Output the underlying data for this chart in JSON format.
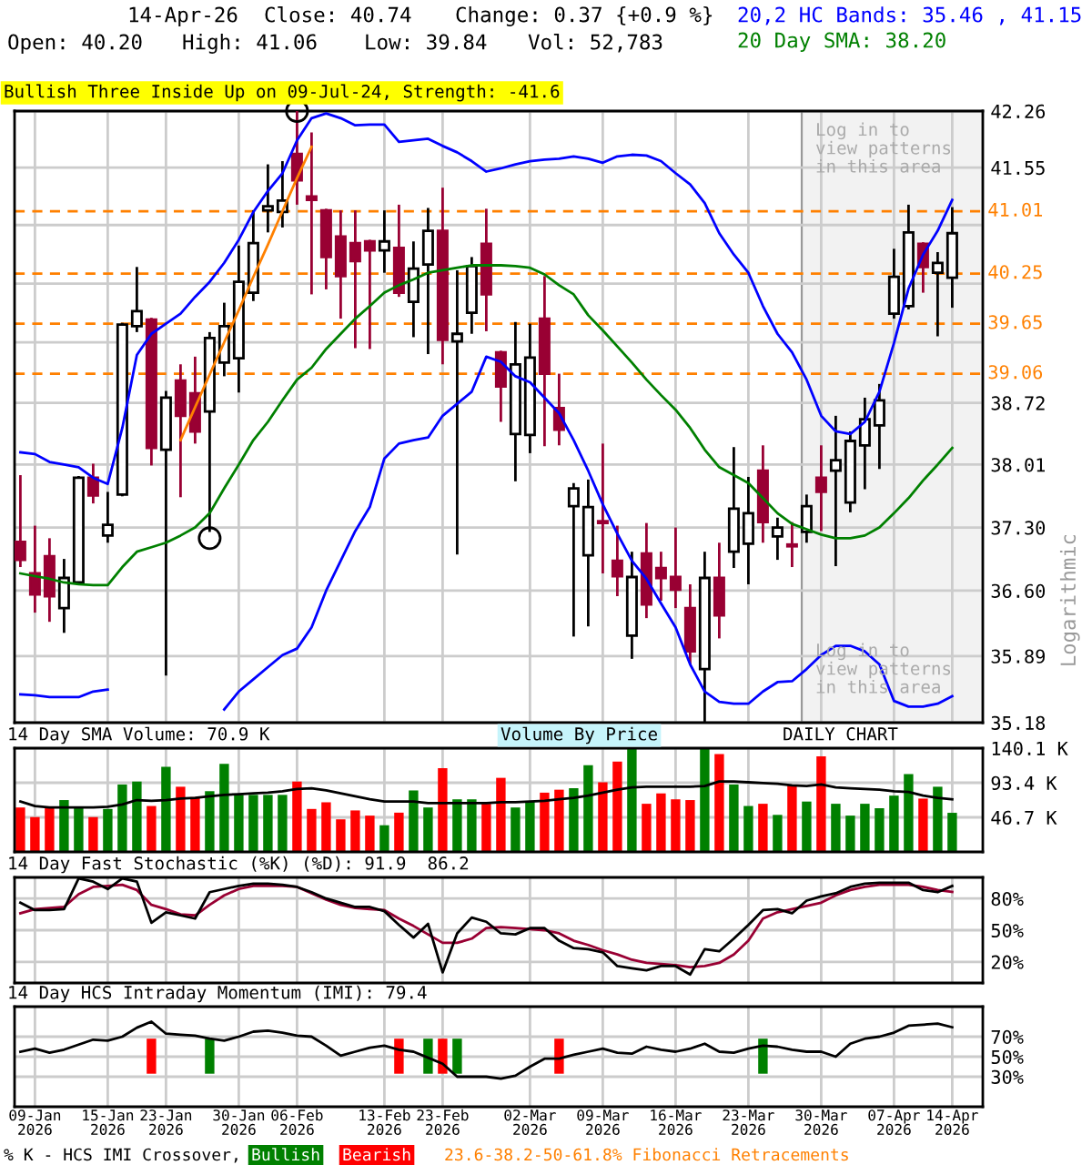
{
  "chart_data": [
    {
      "type": "candlestick",
      "categories": [
        null,
        null,
        null,
        null,
        null,
        null,
        null,
        null,
        null,
        null,
        null,
        null,
        null,
        null,
        null,
        null,
        null,
        null,
        null,
        null,
        null,
        null,
        null,
        null,
        null,
        null,
        null,
        null,
        null,
        null,
        null,
        null,
        null,
        null,
        null,
        null,
        null,
        null,
        null,
        null,
        null,
        null,
        null,
        null,
        null,
        null,
        null,
        null,
        null,
        null,
        null,
        null,
        null,
        null,
        null,
        null,
        null,
        null,
        null,
        null,
        null,
        null,
        null,
        null,
        null
      ],
      "ohlc": [
        [
          37.14,
          37.89,
          36.86,
          36.94
        ],
        [
          36.79,
          37.32,
          36.36,
          36.56
        ],
        [
          36.98,
          37.18,
          36.26,
          36.54
        ],
        [
          36.41,
          36.95,
          36.14,
          36.74
        ],
        [
          36.69,
          37.88,
          36.69,
          37.86
        ],
        [
          37.86,
          38.02,
          37.57,
          37.66
        ],
        [
          37.21,
          37.7,
          37.13,
          37.33
        ],
        [
          37.67,
          39.66,
          37.65,
          39.64
        ],
        [
          39.62,
          40.33,
          39.55,
          39.8
        ],
        [
          39.7,
          39.72,
          38.0,
          38.2
        ],
        [
          38.18,
          38.86,
          35.68,
          38.78
        ],
        [
          38.98,
          39.17,
          37.64,
          38.57
        ],
        [
          38.83,
          39.26,
          38.25,
          38.39
        ],
        [
          38.62,
          39.55,
          37.25,
          39.48
        ],
        [
          39.19,
          39.9,
          39.03,
          39.62
        ],
        [
          39.24,
          40.59,
          38.84,
          40.15
        ],
        [
          40.02,
          41.02,
          39.92,
          40.62
        ],
        [
          41.02,
          41.59,
          40.75,
          41.07
        ],
        [
          41.0,
          41.63,
          40.81,
          41.14
        ],
        [
          41.72,
          42.26,
          41.09,
          41.39
        ],
        [
          41.19,
          41.99,
          40.0,
          41.15
        ],
        [
          41.02,
          41.04,
          40.06,
          40.45
        ],
        [
          40.7,
          41.02,
          39.71,
          40.22
        ],
        [
          40.62,
          41.02,
          39.36,
          40.4
        ],
        [
          40.64,
          40.66,
          39.35,
          40.53
        ],
        [
          40.53,
          41.02,
          40.26,
          40.64
        ],
        [
          40.56,
          41.09,
          39.97,
          40.02
        ],
        [
          39.91,
          40.64,
          39.49,
          40.31
        ],
        [
          40.36,
          41.05,
          39.29,
          40.77
        ],
        [
          40.77,
          41.3,
          39.17,
          39.46
        ],
        [
          39.44,
          40.29,
          37.0,
          39.53
        ],
        [
          39.78,
          40.45,
          39.53,
          40.34
        ],
        [
          40.61,
          41.04,
          39.56,
          40.0
        ],
        [
          39.31,
          39.33,
          38.5,
          38.91
        ],
        [
          38.36,
          39.67,
          37.82,
          39.17
        ],
        [
          38.35,
          39.65,
          38.14,
          39.25
        ],
        [
          39.71,
          40.22,
          38.22,
          39.06
        ],
        [
          38.66,
          39.06,
          38.23,
          38.41
        ],
        [
          37.54,
          37.8,
          36.1,
          37.74
        ],
        [
          36.99,
          37.84,
          36.21,
          37.53
        ],
        [
          37.37,
          38.25,
          36.79,
          37.35
        ],
        [
          36.93,
          37.32,
          36.54,
          36.76
        ],
        [
          36.11,
          37.03,
          35.86,
          36.75
        ],
        [
          37.01,
          37.35,
          36.3,
          36.45
        ],
        [
          36.85,
          37.03,
          36.49,
          36.74
        ],
        [
          36.75,
          37.3,
          36.41,
          36.61
        ],
        [
          36.41,
          36.67,
          35.8,
          35.94
        ],
        [
          35.75,
          37.03,
          35.19,
          36.74
        ],
        [
          36.74,
          37.13,
          36.08,
          36.33
        ],
        [
          37.03,
          38.21,
          36.85,
          37.51
        ],
        [
          37.12,
          37.87,
          36.67,
          37.46
        ],
        [
          37.94,
          38.23,
          37.13,
          37.36
        ],
        [
          37.2,
          37.41,
          36.94,
          37.3
        ],
        [
          37.11,
          37.36,
          36.86,
          37.09
        ],
        [
          37.25,
          37.67,
          37.13,
          37.54
        ],
        [
          37.86,
          38.23,
          37.26,
          37.7
        ],
        [
          37.94,
          38.57,
          36.87,
          38.06
        ],
        [
          37.58,
          38.39,
          37.47,
          38.28
        ],
        [
          38.23,
          38.78,
          37.73,
          38.53
        ],
        [
          38.46,
          38.94,
          37.96,
          38.75
        ],
        [
          39.77,
          40.55,
          39.71,
          40.21
        ],
        [
          39.86,
          41.09,
          39.82,
          40.75
        ],
        [
          40.61,
          40.63,
          40.02,
          40.33
        ],
        [
          40.26,
          40.51,
          39.5,
          40.38
        ],
        [
          40.2,
          41.06,
          39.84,
          40.74
        ]
      ],
      "colors": [
        "#990033",
        "#990033",
        "#990033",
        "#ffffff",
        "#ffffff",
        "#990033",
        "#ffffff",
        "#ffffff",
        "#ffffff",
        "#990033",
        "#ffffff",
        "#990033",
        "#990033",
        "#ffffff",
        "#ffffff",
        "#ffffff",
        "#ffffff",
        "#ffffff",
        "#ffffff",
        "#990033",
        "#990033",
        "#990033",
        "#990033",
        "#990033",
        "#990033",
        "#ffffff",
        "#990033",
        "#ffffff",
        "#ffffff",
        "#990033",
        "#ffffff",
        "#ffffff",
        "#990033",
        "#990033",
        "#ffffff",
        "#ffffff",
        "#990033",
        "#990033",
        "#ffffff",
        "#ffffff",
        "#990033",
        "#990033",
        "#ffffff",
        "#990033",
        "#990033",
        "#990033",
        "#990033",
        "#ffffff",
        "#990033",
        "#ffffff",
        "#ffffff",
        "#990033",
        "#ffffff",
        "#990033",
        "#ffffff",
        "#990033",
        "#ffffff",
        "#ffffff",
        "#ffffff",
        "#ffffff",
        "#ffffff",
        "#ffffff",
        "#990033",
        "#ffffff",
        "#ffffff"
      ],
      "log": true,
      "ylim": [
        35.18,
        42.26
      ],
      "yticks": [
        35.18,
        35.89,
        {
          "value": 36.6,
          "label": "36.60"
        },
        {
          "value": 37.3,
          "label": "37.30"
        },
        38.01,
        38.72,
        {
          "value": 39.43,
          "label": null
        },
        {
          "value": 40.13,
          "label": null
        },
        {
          "value": 40.84,
          "label": null
        },
        41.55,
        42.26
      ],
      "ylabel": "Logarithmic",
      "tick_labels": "y",
      "grid": true,
      "ref_lines": [
        {
          "axis": "y",
          "value": 41.01,
          "label": "41.01",
          "color": "#ff8000",
          "line_style": "dashed"
        },
        {
          "axis": "y",
          "value": 40.25,
          "label": "40.25",
          "color": "#ff8000",
          "line_style": "dashed"
        },
        {
          "axis": "y",
          "value": 39.65,
          "label": "39.65",
          "color": "#ff8000",
          "line_style": "dashed"
        },
        {
          "axis": "y",
          "value": 39.06,
          "label": "39.06",
          "color": "#ff8000",
          "line_style": "dashed"
        }
      ],
      "annotations": [
        "14-Apr-26",
        "Close: 40.74",
        "Change: 0.37 {+0.9 %}",
        "Open: 40.20",
        "High: 41.06",
        "Low: 39.84",
        "Vol: 52,783",
        "20,2 HC Bands: 35.46 , 41.15",
        "20 Day SMA: 38.20",
        "Bullish Three Inside Up on 09-Jul-24, Strength: -41.6",
        "Log in to\nview patterns\nin this area",
        "Log in to\nview patterns\nin this area"
      ],
      "series": [
        {
          "type": "line",
          "color": "#0000ff",
          "values": [
            38.15,
            38.13,
            38.04,
            38.01,
            37.98,
            37.86,
            37.79,
            38.43,
            39.28,
            39.53,
            39.65,
            39.77,
            39.97,
            40.15,
            40.38,
            40.66,
            41.0,
            41.26,
            41.48,
            41.89,
            42.17,
            42.23,
            42.17,
            42.08,
            42.09,
            42.09,
            41.87,
            41.89,
            41.91,
            41.82,
            41.74,
            41.63,
            41.5,
            41.54,
            41.59,
            41.63,
            41.65,
            41.66,
            41.69,
            41.66,
            41.61,
            41.69,
            41.71,
            41.7,
            41.63,
            41.48,
            41.34,
            41.11,
            40.74,
            40.48,
            40.26,
            39.86,
            39.53,
            39.31,
            38.99,
            38.57,
            38.39,
            38.36,
            38.5,
            38.85,
            39.42,
            40.07,
            40.48,
            40.77,
            41.15
          ]
        },
        {
          "type": "line",
          "color": "#0000ff",
          "values": [
            35.48,
            35.47,
            35.45,
            35.45,
            35.45,
            35.51,
            35.53,
            null,
            null,
            null,
            null,
            null,
            null,
            null,
            35.32,
            35.51,
            35.64,
            35.77,
            35.9,
            35.97,
            36.2,
            36.6,
            36.93,
            37.26,
            37.53,
            38.08,
            38.25,
            38.29,
            38.32,
            38.57,
            38.71,
            38.85,
            39.26,
            39.2,
            39.03,
            38.96,
            38.78,
            38.6,
            38.29,
            37.94,
            37.56,
            37.23,
            36.93,
            36.73,
            36.46,
            36.2,
            35.8,
            35.51,
            35.4,
            35.38,
            35.38,
            35.51,
            35.61,
            35.62,
            35.75,
            35.9,
            36.0,
            36.0,
            35.94,
            35.8,
            35.41,
            35.35,
            35.35,
            35.38,
            35.46
          ]
        },
        {
          "type": "line",
          "color": "#008000",
          "values": [
            36.79,
            36.76,
            36.73,
            36.69,
            36.67,
            36.66,
            36.66,
            36.86,
            37.03,
            37.08,
            37.13,
            37.21,
            37.3,
            37.46,
            37.74,
            38.01,
            38.29,
            38.5,
            38.75,
            38.99,
            39.13,
            39.35,
            39.53,
            39.71,
            39.86,
            40.02,
            40.11,
            40.18,
            40.26,
            40.29,
            40.32,
            40.35,
            40.35,
            40.35,
            40.34,
            40.32,
            40.24,
            40.11,
            40.0,
            39.75,
            39.57,
            39.38,
            39.19,
            38.99,
            38.81,
            38.64,
            38.43,
            38.18,
            37.98,
            37.89,
            37.8,
            37.63,
            37.46,
            37.34,
            37.28,
            37.22,
            37.18,
            37.18,
            37.21,
            37.3,
            37.46,
            37.63,
            37.83,
            38.01,
            38.2
          ]
        },
        {
          "type": "line",
          "color": "#ff8000",
          "values": [
            null,
            null,
            null,
            null,
            null,
            null,
            null,
            null,
            null,
            null,
            null,
            38.29,
            38.67,
            39.05,
            39.43,
            39.81,
            40.21,
            40.6,
            41.01,
            41.42,
            41.81,
            null,
            null,
            null,
            null,
            null,
            null,
            null,
            null,
            null,
            null,
            null,
            null,
            null,
            null,
            null,
            null,
            null,
            null,
            null,
            null,
            null,
            null,
            null,
            null,
            null,
            null,
            null,
            null,
            null,
            null,
            null,
            null,
            null,
            null,
            null,
            null,
            null,
            null,
            null,
            null,
            null,
            null,
            null,
            null
          ]
        },
        {
          "type": "scatter",
          "marker": "circle",
          "color": "#000000",
          "values": [
            null,
            null,
            null,
            null,
            null,
            null,
            null,
            null,
            null,
            null,
            null,
            null,
            null,
            37.18,
            null,
            null,
            null,
            null,
            null,
            42.26,
            null,
            null,
            null,
            null,
            null,
            null,
            null,
            null,
            null,
            null,
            null,
            null,
            null,
            null,
            null,
            null,
            null,
            null,
            null,
            null,
            null,
            null,
            null,
            null,
            null,
            null,
            null,
            null,
            null,
            null,
            null,
            null,
            null,
            null,
            null,
            null,
            null,
            null,
            null,
            null,
            null,
            null,
            null,
            null,
            null
          ]
        }
      ]
    },
    {
      "type": "bar",
      "title": "14 Day SMA Volume: 70.9 K",
      "categories": [
        null,
        null,
        null,
        null,
        null,
        null,
        null,
        null,
        null,
        null,
        null,
        null,
        null,
        null,
        null,
        null,
        null,
        null,
        null,
        null,
        null,
        null,
        null,
        null,
        null,
        null,
        null,
        null,
        null,
        null,
        null,
        null,
        null,
        null,
        null,
        null,
        null,
        null,
        null,
        null,
        null,
        null,
        null,
        null,
        null,
        null,
        null,
        null,
        null,
        null,
        null,
        null,
        null,
        null,
        null,
        null,
        null,
        null,
        null,
        null,
        null,
        null,
        null,
        null,
        null
      ],
      "ylim": [
        0,
        140.1
      ],
      "yticks": [
        {
          "value": 46.7,
          "label": "46.7 K"
        },
        {
          "value": 93.4,
          "label": "93.4 K"
        },
        {
          "value": 140.1,
          "label": "140.1 K"
        }
      ],
      "tick_labels": "y",
      "grid": true,
      "annotations": [
        "Volume By Price",
        "DAILY CHART"
      ],
      "series": [
        {
          "type": "bar",
          "colors": [
            "#ff0000",
            "#ff0000",
            "#ff0000",
            "#008000",
            "#008000",
            "#ff0000",
            "#008000",
            "#008000",
            "#008000",
            "#ff0000",
            "#008000",
            "#ff0000",
            "#ff0000",
            "#008000",
            "#008000",
            "#008000",
            "#008000",
            "#008000",
            "#008000",
            "#ff0000",
            "#ff0000",
            "#ff0000",
            "#ff0000",
            "#ff0000",
            "#ff0000",
            "#008000",
            "#ff0000",
            "#008000",
            "#008000",
            "#ff0000",
            "#008000",
            "#008000",
            "#ff0000",
            "#ff0000",
            "#008000",
            "#008000",
            "#ff0000",
            "#ff0000",
            "#008000",
            "#008000",
            "#ff0000",
            "#ff0000",
            "#008000",
            "#ff0000",
            "#ff0000",
            "#ff0000",
            "#ff0000",
            "#008000",
            "#ff0000",
            "#008000",
            "#008000",
            "#ff0000",
            "#008000",
            "#ff0000",
            "#008000",
            "#ff0000",
            "#008000",
            "#008000",
            "#008000",
            "#008000",
            "#008000",
            "#008000",
            "#ff0000",
            "#008000",
            "#008000"
          ],
          "values": [
            60,
            47,
            59,
            70,
            60,
            47,
            58,
            91,
            95,
            62,
            115,
            88,
            74,
            82,
            119,
            77,
            77,
            77,
            77,
            95,
            58,
            67,
            44,
            56,
            49,
            36,
            53,
            83,
            60,
            113,
            71,
            71,
            65,
            100,
            60,
            68,
            80,
            84,
            86,
            117,
            94,
            122,
            140,
            65,
            79,
            71,
            70,
            140,
            132,
            91,
            62,
            65,
            50,
            90,
            68,
            129,
            65,
            49,
            65,
            59,
            76,
            105,
            72,
            88,
            52.8
          ]
        },
        {
          "type": "line",
          "color": "#000000",
          "values": [
            68,
            62,
            60,
            60,
            60,
            60,
            61,
            64,
            70,
            69,
            70,
            72,
            73,
            75,
            77,
            78,
            79,
            80,
            82,
            85,
            86,
            83,
            79,
            75,
            71,
            68,
            68,
            68,
            66,
            66,
            66,
            66,
            66,
            67,
            67,
            68,
            69,
            71,
            73,
            76,
            80,
            84,
            87,
            88,
            88,
            88,
            88,
            89,
            95,
            95,
            94,
            93,
            92,
            90,
            89,
            91,
            87,
            86,
            85,
            84,
            82,
            81,
            76,
            73,
            70.9
          ]
        }
      ]
    },
    {
      "type": "line",
      "title": "14 Day Fast Stochastic (%K) (%D): 91.9  86.2",
      "categories": [
        null,
        null,
        null,
        null,
        null,
        null,
        null,
        null,
        null,
        null,
        null,
        null,
        null,
        null,
        null,
        null,
        null,
        null,
        null,
        null,
        null,
        null,
        null,
        null,
        null,
        null,
        null,
        null,
        null,
        null,
        null,
        null,
        null,
        null,
        null,
        null,
        null,
        null,
        null,
        null,
        null,
        null,
        null,
        null,
        null,
        null,
        null,
        null,
        null,
        null,
        null,
        null,
        null,
        null,
        null,
        null,
        null,
        null,
        null,
        null,
        null,
        null,
        null,
        null,
        null
      ],
      "ylim": [
        0,
        100
      ],
      "yticks": [
        {
          "value": 20,
          "label": "20%"
        },
        {
          "value": 50,
          "label": "50%"
        },
        {
          "value": 80,
          "label": "80%"
        }
      ],
      "tick_labels": "y",
      "grid": true,
      "series": [
        {
          "color": "#990033",
          "values": [
            66,
            70,
            71,
            72,
            84,
            91,
            92,
            93,
            88,
            74,
            70,
            65,
            64,
            74,
            83,
            89,
            92,
            92,
            92,
            91,
            85,
            79,
            74,
            71,
            70,
            69,
            61,
            54,
            46,
            38,
            38,
            42,
            52,
            53,
            52,
            51,
            50,
            47,
            40,
            36,
            31,
            27,
            22,
            19,
            18,
            17,
            15,
            16,
            19,
            27,
            40,
            61,
            67,
            70,
            73,
            76,
            83,
            88,
            91,
            93,
            93,
            93,
            91,
            88,
            86.2
          ]
        },
        {
          "color": "#000000",
          "values": [
            76,
            69,
            69,
            70,
            99,
            96,
            89,
            99,
            96,
            57,
            67,
            64,
            61,
            86,
            89,
            92,
            94,
            94,
            93,
            91,
            86,
            80,
            76,
            72,
            72,
            68,
            55,
            43,
            56,
            10,
            47,
            62,
            58,
            47,
            46,
            52,
            52,
            40,
            33,
            32,
            29,
            16,
            14,
            12,
            16,
            16,
            8,
            32,
            30,
            42,
            55,
            69,
            70,
            66,
            78,
            82,
            85,
            91,
            94,
            95,
            95,
            95,
            88,
            86,
            91.9
          ]
        }
      ]
    },
    {
      "type": "line",
      "title": "14 Day HCS Intraday Momentum (IMI): 79.4",
      "categories": [
        null,
        "09-Jan\n2026",
        null,
        null,
        null,
        null,
        "15-Jan\n2026",
        null,
        null,
        null,
        "23-Jan\n2026",
        null,
        null,
        null,
        null,
        "30-Jan\n2026",
        null,
        null,
        null,
        "06-Feb\n2026",
        null,
        null,
        null,
        null,
        null,
        "13-Feb\n2026",
        null,
        null,
        null,
        "23-Feb\n2026",
        null,
        null,
        null,
        null,
        null,
        "02-Mar\n2026",
        null,
        null,
        null,
        null,
        "09-Mar\n2026",
        null,
        null,
        null,
        null,
        "16-Mar\n2026",
        null,
        null,
        null,
        null,
        "23-Mar\n2026",
        null,
        null,
        null,
        null,
        "30-Mar\n2026",
        null,
        null,
        null,
        null,
        "07-Apr\n2026",
        null,
        null,
        null,
        "14-Apr\n2026"
      ],
      "ylim": [
        0,
        100
      ],
      "yticks": [
        {
          "value": 30,
          "label": "30%"
        },
        {
          "value": 50,
          "label": "50%"
        },
        {
          "value": 70,
          "label": "70%"
        }
      ],
      "grid": true,
      "annotations": [
        "% K - HCS IMI Crossover,",
        "Bullish",
        "Bearish",
        "23.6-38.2-50-61.8% Fibonacci Retracements"
      ],
      "series": [
        {
          "type": "bar",
          "colors": [
            null,
            null,
            null,
            null,
            null,
            null,
            null,
            null,
            null,
            "#ff0000",
            null,
            null,
            null,
            "#008000",
            null,
            null,
            null,
            null,
            null,
            null,
            null,
            null,
            null,
            null,
            null,
            null,
            "#ff0000",
            null,
            "#008000",
            "#ff0000",
            "#008000",
            null,
            null,
            null,
            null,
            null,
            null,
            "#ff0000",
            null,
            null,
            null,
            null,
            null,
            null,
            null,
            null,
            null,
            null,
            null,
            null,
            null,
            "#008000",
            null,
            null,
            null,
            null,
            null,
            null,
            null,
            null,
            null,
            null,
            null,
            null,
            null
          ],
          "base": [
            null,
            null,
            null,
            null,
            null,
            null,
            null,
            null,
            null,
            33,
            null,
            null,
            null,
            33,
            null,
            null,
            null,
            null,
            null,
            null,
            null,
            null,
            null,
            null,
            null,
            null,
            33,
            null,
            33,
            33,
            33,
            null,
            null,
            null,
            null,
            null,
            null,
            33,
            null,
            null,
            null,
            null,
            null,
            null,
            null,
            null,
            null,
            null,
            null,
            null,
            null,
            33,
            null,
            null,
            null,
            null,
            null,
            null,
            null,
            null,
            null,
            null,
            null,
            null,
            null
          ],
          "values": [
            null,
            null,
            null,
            null,
            null,
            null,
            null,
            null,
            null,
            35,
            null,
            null,
            null,
            35,
            null,
            null,
            null,
            null,
            null,
            null,
            null,
            null,
            null,
            null,
            null,
            null,
            35,
            null,
            35,
            35,
            35,
            null,
            null,
            null,
            null,
            null,
            null,
            35,
            null,
            null,
            null,
            null,
            null,
            null,
            null,
            null,
            null,
            null,
            null,
            null,
            null,
            35,
            null,
            null,
            null,
            null,
            null,
            null,
            null,
            null,
            null,
            null,
            null,
            null,
            null
          ]
        },
        {
          "type": "line",
          "color": "#000000",
          "values": [
            55,
            58,
            54,
            57,
            62,
            67,
            66,
            70,
            79,
            85,
            73,
            72,
            71,
            68,
            66,
            70,
            75,
            76,
            74,
            71,
            70,
            61,
            51,
            55,
            59,
            61,
            57,
            55,
            49,
            43,
            30,
            30,
            30,
            28,
            31,
            40,
            48,
            48,
            52,
            55,
            58,
            54,
            53,
            60,
            57,
            55,
            58,
            63,
            55,
            54,
            58,
            61,
            60,
            57,
            55,
            55,
            50,
            63,
            68,
            70,
            74,
            81,
            82,
            83,
            79.4
          ]
        }
      ]
    }
  ]
}
